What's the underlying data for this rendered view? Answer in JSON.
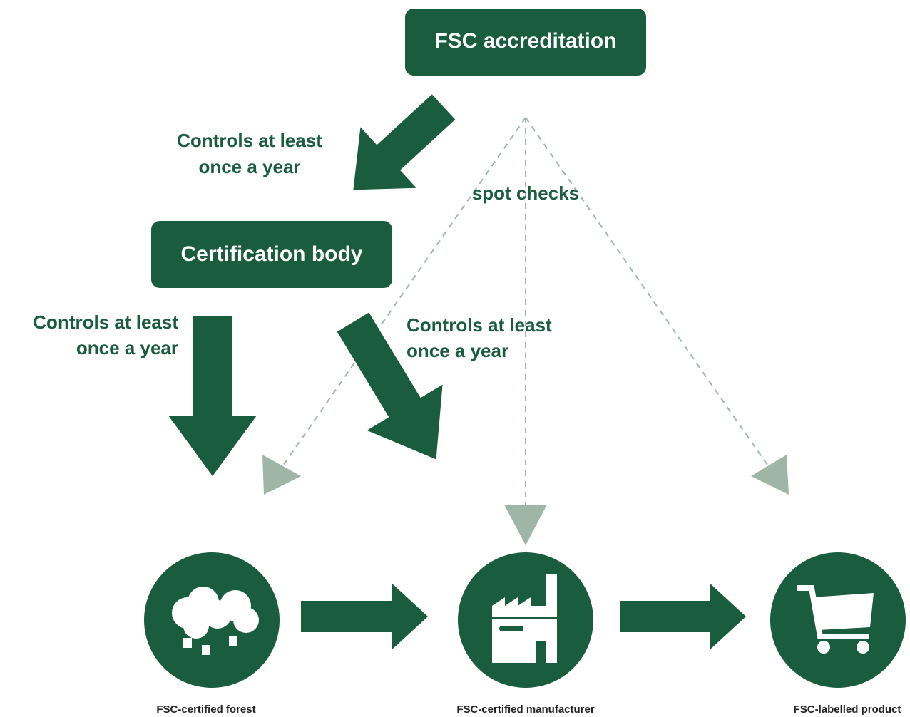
{
  "boxes": [
    {
      "label": "FSC accreditation"
    },
    {
      "label": "Certification body"
    }
  ],
  "controls_labels": [
    {
      "lines": [
        "Controls at least",
        "once a year"
      ]
    },
    {
      "lines": [
        "Controls at least",
        "once a year"
      ]
    },
    {
      "lines": [
        "Controls at least",
        "once a year"
      ]
    }
  ],
  "spot_checks": "spot checks",
  "endpoints": [
    {
      "label": "FSC-certified forest"
    },
    {
      "label": "FSC-certified manufacturer"
    },
    {
      "label": "FSC-labelled product"
    }
  ]
}
